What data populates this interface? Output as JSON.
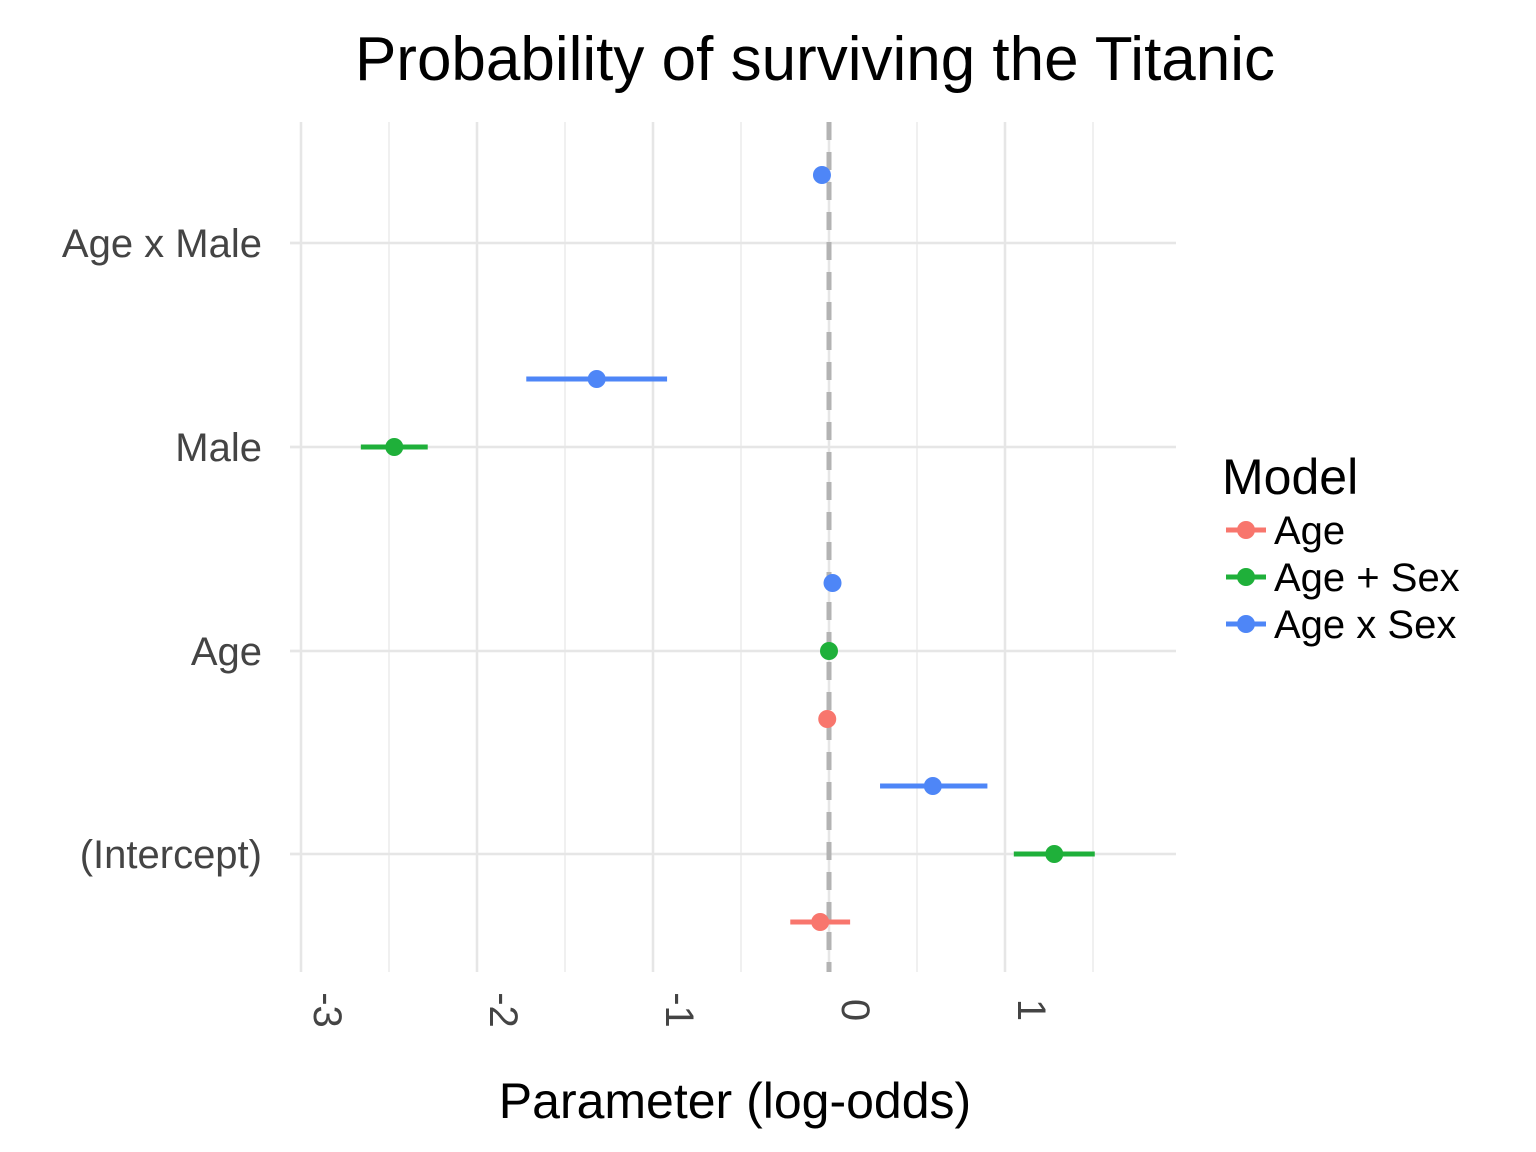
{
  "chart_data": {
    "type": "dot-and-whisker",
    "title": "Probability of surviving the Titanic",
    "xlabel": "Parameter (log-odds)",
    "ylabel": "",
    "xlim": [
      -3,
      2
    ],
    "xticks": [
      -3,
      -2,
      -1,
      0,
      1
    ],
    "reference_line": 0,
    "grid": true,
    "legend": {
      "title": "Model",
      "position": "right"
    },
    "categories": [
      "(Intercept)",
      "Age",
      "Male",
      "Age x Male"
    ],
    "series": [
      {
        "name": "Age",
        "color": "#F8766D",
        "points": [
          {
            "term": "(Intercept)",
            "estimate": -0.05,
            "low": -0.22,
            "high": 0.12
          },
          {
            "term": "Age",
            "estimate": -0.01,
            "low": -0.01,
            "high": -0.01
          }
        ]
      },
      {
        "name": "Age + Sex",
        "color": "#1FB03A",
        "points": [
          {
            "term": "(Intercept)",
            "estimate": 1.28,
            "low": 1.05,
            "high": 1.51
          },
          {
            "term": "Age",
            "estimate": 0.0,
            "low": 0.0,
            "high": 0.0
          },
          {
            "term": "Male",
            "estimate": -2.47,
            "low": -2.66,
            "high": -2.28
          }
        ]
      },
      {
        "name": "Age x Sex",
        "color": "#4E86F7",
        "points": [
          {
            "term": "(Intercept)",
            "estimate": 0.59,
            "low": 0.29,
            "high": 0.9
          },
          {
            "term": "Age",
            "estimate": 0.02,
            "low": 0.02,
            "high": 0.02
          },
          {
            "term": "Male",
            "estimate": -1.32,
            "low": -1.72,
            "high": -0.92
          },
          {
            "term": "Age x Male",
            "estimate": -0.04,
            "low": -0.04,
            "high": -0.04
          }
        ]
      }
    ]
  }
}
